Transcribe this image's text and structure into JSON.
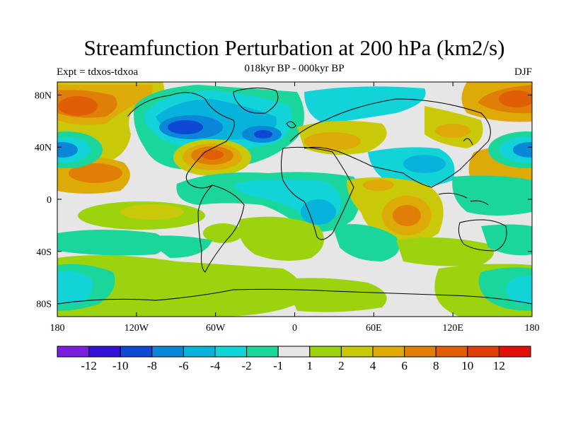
{
  "header": {
    "title": "Streamfunction Perturbation at 200 hPa (km2/s)",
    "subtitle": "018kyr BP - 000kyr BP",
    "left_label": "Expt = tdxos-tdxoa",
    "right_label": "DJF"
  },
  "map": {
    "projection": "cylindrical-equidistant",
    "lon_range": [
      -180,
      180
    ],
    "lat_range": [
      -90,
      90
    ],
    "background_color": "#e6e6e6",
    "x_ticks": [
      {
        "lon": -180,
        "label": "180"
      },
      {
        "lon": -120,
        "label": "120W"
      },
      {
        "lon": -60,
        "label": "60W"
      },
      {
        "lon": 0,
        "label": "0"
      },
      {
        "lon": 60,
        "label": "60E"
      },
      {
        "lon": 120,
        "label": "120E"
      },
      {
        "lon": 180,
        "label": "180"
      }
    ],
    "y_ticks": [
      {
        "lat": 80,
        "label": "80N"
      },
      {
        "lat": 40,
        "label": "40N"
      },
      {
        "lat": 0,
        "label": "0"
      },
      {
        "lat": -40,
        "label": "40S"
      },
      {
        "lat": -80,
        "label": "80S"
      }
    ]
  },
  "colorbar": {
    "colors": [
      "#7a1fe0",
      "#3311d6",
      "#0d49d4",
      "#0a87d8",
      "#08b3db",
      "#12d3d8",
      "#1bd69a",
      "#e6e6e6",
      "#9dd20e",
      "#c9c90a",
      "#ddaa08",
      "#e07f06",
      "#e05f06",
      "#e03f0a",
      "#e0100a"
    ],
    "labels": [
      "-12",
      "-10",
      "-8",
      "-6",
      "-4",
      "-2",
      "-1",
      "1",
      "2",
      "4",
      "6",
      "8",
      "10",
      "12"
    ]
  }
}
